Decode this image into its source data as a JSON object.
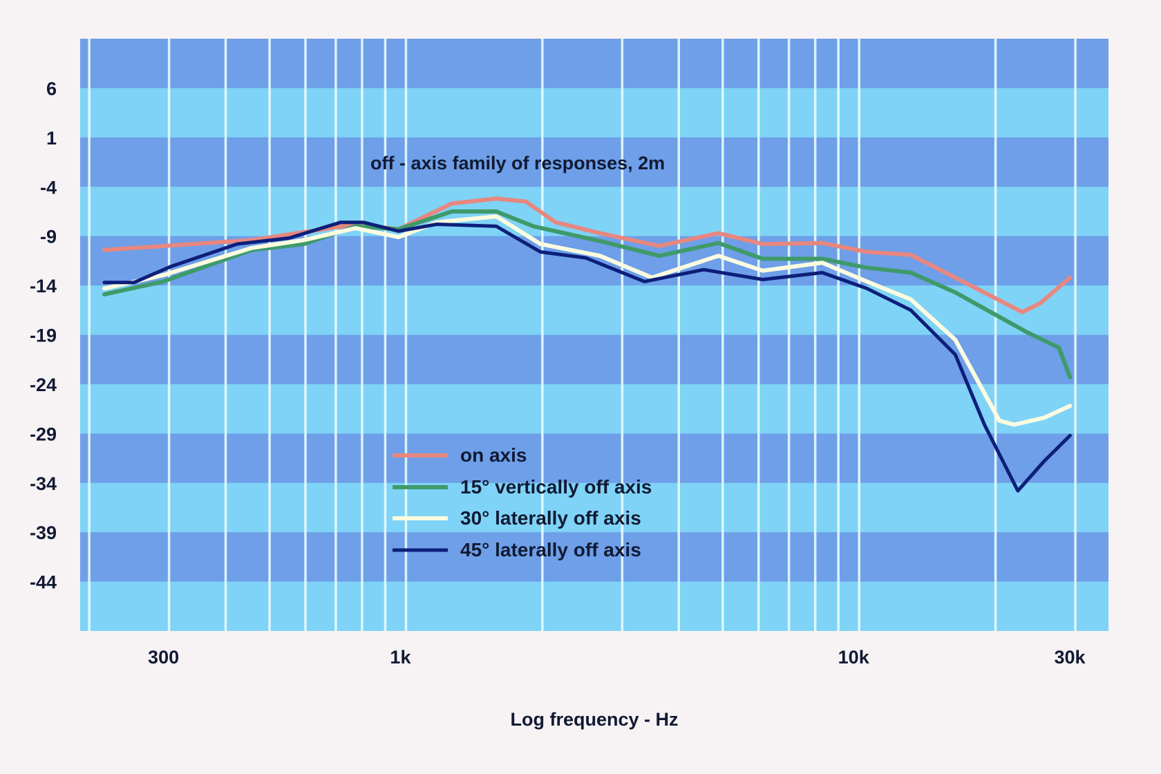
{
  "chart_data": {
    "type": "line",
    "title": "off - axis family of responses, 2m",
    "xlabel": "Log frequency - Hz",
    "ylabel": "",
    "xscale": "log",
    "xlim": [
      191,
      35500
    ],
    "ylim": [
      -49,
      11
    ],
    "x_ticks": [
      {
        "value": 300,
        "label": "300"
      },
      {
        "value": 1000,
        "label": "1k"
      },
      {
        "value": 10000,
        "label": "10k"
      },
      {
        "value": 30000,
        "label": "30k"
      }
    ],
    "y_ticks": [
      6,
      1,
      -4,
      -9,
      -14,
      -19,
      -24,
      -29,
      -34,
      -39,
      -44
    ],
    "x_gridlines": [
      200,
      300,
      400,
      500,
      600,
      700,
      800,
      900,
      1000,
      2000,
      3000,
      4000,
      5000,
      6000,
      7000,
      8000,
      9000,
      10000,
      20000,
      30000
    ],
    "band_step_db": 5,
    "legend_position": "center-left",
    "series": [
      {
        "name": "on axis",
        "color": "#e8877f",
        "points": [
          [
            216,
            -10.4
          ],
          [
            457,
            -9.4
          ],
          [
            774,
            -7.8
          ],
          [
            963,
            -8.3
          ],
          [
            1263,
            -5.7
          ],
          [
            1582,
            -5.2
          ],
          [
            1840,
            -5.5
          ],
          [
            2140,
            -7.6
          ],
          [
            2680,
            -8.7
          ],
          [
            3620,
            -10.0
          ],
          [
            4890,
            -8.7
          ],
          [
            6130,
            -9.8
          ],
          [
            8290,
            -9.7
          ],
          [
            10400,
            -10.6
          ],
          [
            13000,
            -10.9
          ],
          [
            16300,
            -13.2
          ],
          [
            22900,
            -16.7
          ],
          [
            25100,
            -15.8
          ],
          [
            29200,
            -13.2
          ]
        ]
      },
      {
        "name": "15° vertically off axis",
        "color": "#3f9a6a",
        "points": [
          [
            216,
            -14.9
          ],
          [
            291,
            -13.6
          ],
          [
            457,
            -10.4
          ],
          [
            595,
            -9.8
          ],
          [
            774,
            -8.0
          ],
          [
            963,
            -8.3
          ],
          [
            1263,
            -6.5
          ],
          [
            1582,
            -6.5
          ],
          [
            1910,
            -8.0
          ],
          [
            2680,
            -9.5
          ],
          [
            3620,
            -11.0
          ],
          [
            4890,
            -9.7
          ],
          [
            6130,
            -11.3
          ],
          [
            8290,
            -11.3
          ],
          [
            10400,
            -12.2
          ],
          [
            13000,
            -12.7
          ],
          [
            16300,
            -14.7
          ],
          [
            23600,
            -18.8
          ],
          [
            27600,
            -20.3
          ],
          [
            29200,
            -23.3
          ]
        ]
      },
      {
        "name": "30° laterally off axis",
        "color": "#fbfbe0",
        "points": [
          [
            216,
            -14.3
          ],
          [
            291,
            -12.96
          ],
          [
            457,
            -10.2
          ],
          [
            595,
            -9.4
          ],
          [
            774,
            -8.2
          ],
          [
            963,
            -9.1
          ],
          [
            1170,
            -7.6
          ],
          [
            1582,
            -7.0
          ],
          [
            1980,
            -9.8
          ],
          [
            2680,
            -11.0
          ],
          [
            3490,
            -13.2
          ],
          [
            4890,
            -11.0
          ],
          [
            6130,
            -12.5
          ],
          [
            8290,
            -11.7
          ],
          [
            10400,
            -13.6
          ],
          [
            13000,
            -15.4
          ],
          [
            16300,
            -19.5
          ],
          [
            20400,
            -27.7
          ],
          [
            22000,
            -28.1
          ],
          [
            25600,
            -27.4
          ],
          [
            29200,
            -26.2
          ]
        ]
      },
      {
        "name": "45° laterally off axis",
        "color": "#0d1f7a",
        "points": [
          [
            216,
            -13.7
          ],
          [
            251,
            -13.7
          ],
          [
            302,
            -12.1
          ],
          [
            424,
            -9.8
          ],
          [
            552,
            -9.2
          ],
          [
            718,
            -7.6
          ],
          [
            805,
            -7.6
          ],
          [
            963,
            -8.5
          ],
          [
            1170,
            -7.8
          ],
          [
            1582,
            -8.0
          ],
          [
            1980,
            -10.6
          ],
          [
            2490,
            -11.2
          ],
          [
            3360,
            -13.6
          ],
          [
            4540,
            -12.4
          ],
          [
            6130,
            -13.4
          ],
          [
            8290,
            -12.7
          ],
          [
            10400,
            -14.3
          ],
          [
            13000,
            -16.5
          ],
          [
            16300,
            -21.0
          ],
          [
            18900,
            -28.1
          ],
          [
            22400,
            -34.8
          ],
          [
            25600,
            -31.8
          ],
          [
            29200,
            -29.2
          ]
        ]
      }
    ]
  },
  "colors": {
    "band_dark": "#6e9fe8",
    "band_light": "#7fd3f6",
    "grid": "#e8fbff"
  }
}
